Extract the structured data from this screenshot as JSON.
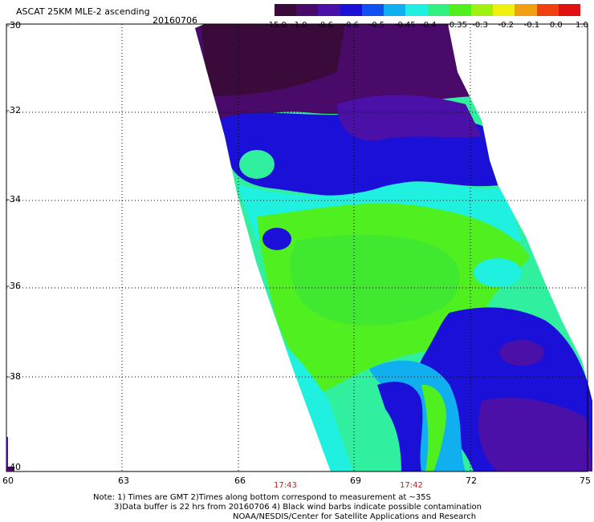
{
  "header": {
    "title": "ASCAT 25KM MLE-2 ascending",
    "date": "20160706"
  },
  "colorbar": {
    "labels": [
      "-15.0",
      "-1.0",
      "-0.6",
      "-0.6",
      "-0.5",
      "-0.45",
      "-0.4",
      "-0.35",
      "-0.3",
      "-0.2",
      "-0.1",
      "0.0",
      "1.0"
    ],
    "colors": [
      "#3a0a3a",
      "#4a0a6a",
      "#4a10a8",
      "#1a10d8",
      "#1050f0",
      "#10b0f0",
      "#20f0e0",
      "#30f080",
      "#50f020",
      "#a0f010",
      "#f0f010",
      "#f0a010",
      "#f04010",
      "#e01010"
    ]
  },
  "map": {
    "lat_labels": [
      "-30",
      "-32",
      "-34",
      "-36",
      "-38",
      "-40"
    ],
    "lon_labels": [
      "60",
      "63",
      "66",
      "69",
      "72",
      "75"
    ],
    "time_labels": [
      "17:43",
      "17:42"
    ]
  },
  "footer": {
    "line1": "Note: 1) Times are GMT 2)Times along bottom correspond to measurement at ~35S",
    "line2": "3)Data buffer is 22 hrs from 20160706 4) Black wind barbs indicate possible contamination",
    "line3": "NOAA/NESDIS/Center for Satellite Applications and Research"
  }
}
